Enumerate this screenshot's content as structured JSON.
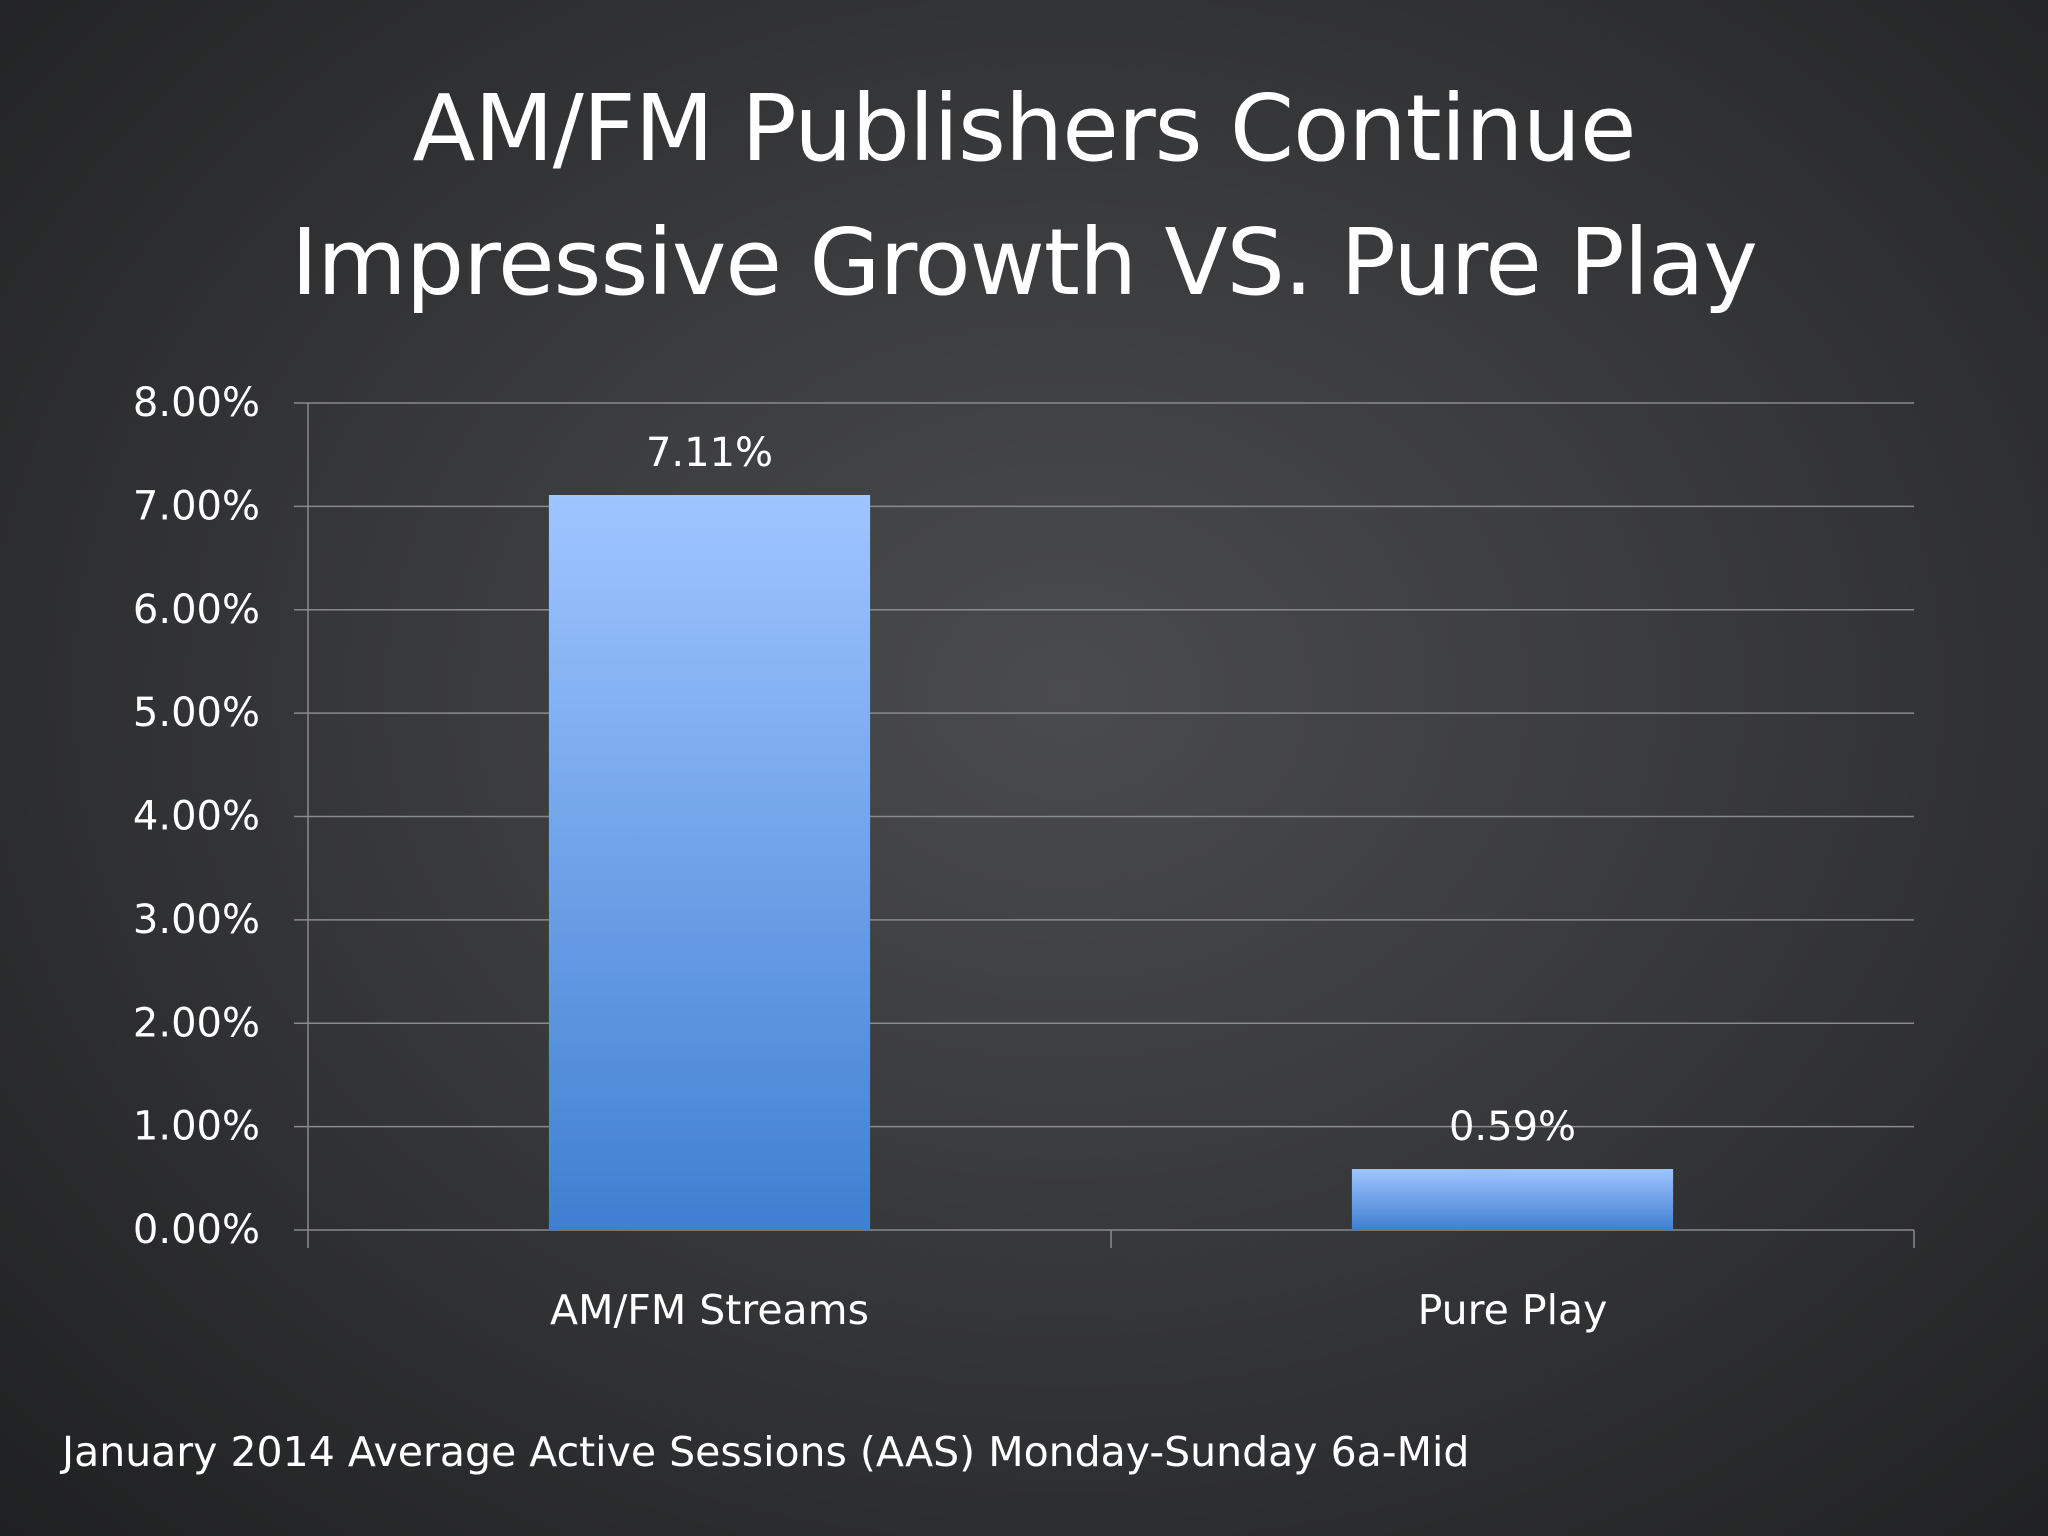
{
  "slide": {
    "title_line1": "AM/FM Publishers Continue",
    "title_line2": "Impressive Growth VS. Pure Play",
    "footnote": "January 2014 Average Active Sessions (AAS) Monday-Sunday 6a-Mid"
  },
  "chart_data": {
    "type": "bar",
    "title": "",
    "xlabel": "",
    "ylabel": "",
    "categories": [
      "AM/FM Streams",
      "Pure Play"
    ],
    "values": [
      7.11,
      0.59
    ],
    "data_labels": [
      "7.11%",
      "0.59%"
    ],
    "ylim": [
      0,
      8
    ],
    "y_ticks": [
      0,
      1,
      2,
      3,
      4,
      5,
      6,
      7,
      8
    ],
    "y_tick_labels": [
      "0.00%",
      "1.00%",
      "2.00%",
      "3.00%",
      "4.00%",
      "5.00%",
      "6.00%",
      "7.00%",
      "8.00%"
    ],
    "grid": true,
    "legend": "none",
    "bar_color_top": "#9fc5ff",
    "bar_color_bottom": "#3f7fd1",
    "gridline_color": "#8a8a8a",
    "text_color": "#ffffff"
  }
}
